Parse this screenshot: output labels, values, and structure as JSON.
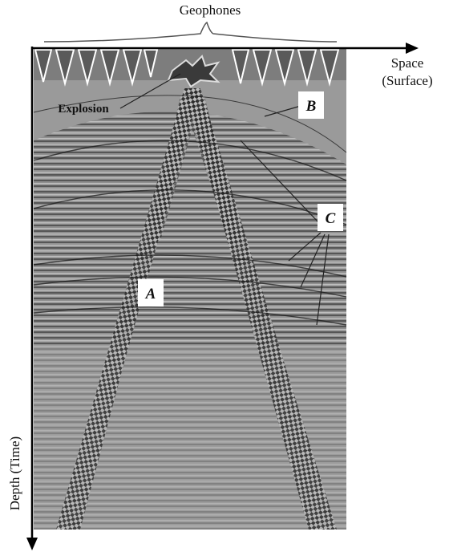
{
  "labels": {
    "geophones": "Geophones",
    "space": "Space",
    "surface": "(Surface)",
    "explosion": "Explosion",
    "b": "B",
    "c": "C",
    "a": "A",
    "depth": "Depth (Time)"
  }
}
